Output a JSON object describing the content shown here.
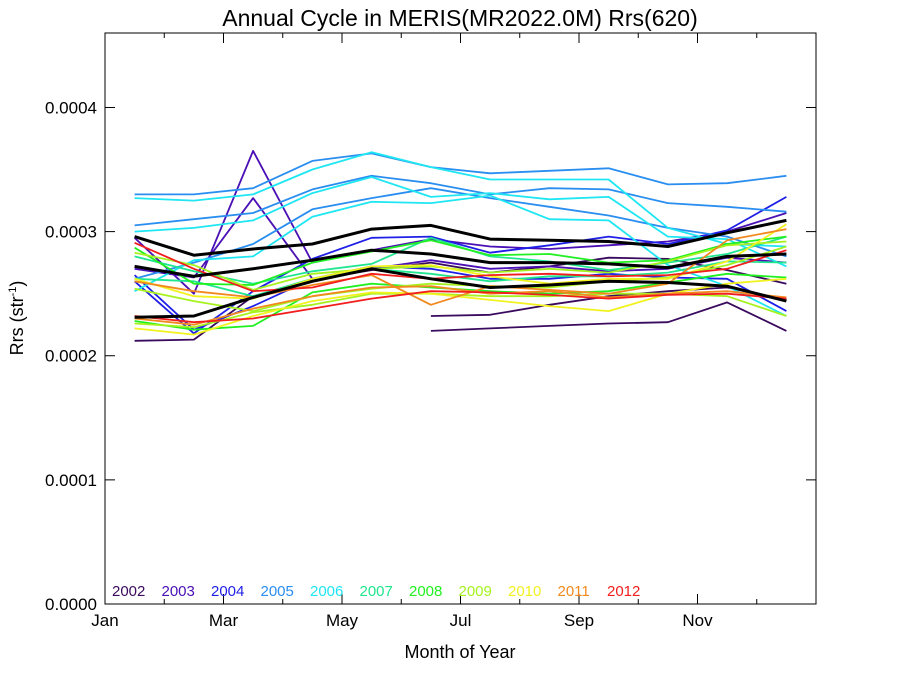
{
  "chart_data": {
    "type": "line",
    "title": "Annual Cycle in MERIS(MR2022.0M) Rrs(620)",
    "xlabel": "Month of Year",
    "ylabel_main": "Rrs (str",
    "ylabel_sup": "-1",
    "ylabel_close": ")",
    "xlim": [
      0,
      12
    ],
    "ylim": [
      0,
      0.00046
    ],
    "x_ticks": [
      {
        "value": 0,
        "label": "Jan"
      },
      {
        "value": 2,
        "label": "Mar"
      },
      {
        "value": 4,
        "label": "May"
      },
      {
        "value": 6,
        "label": "Jul"
      },
      {
        "value": 8,
        "label": "Sep"
      },
      {
        "value": 10,
        "label": "Nov"
      }
    ],
    "y_ticks": [
      {
        "value": 0,
        "label": "0.0000"
      },
      {
        "value": 0.0001,
        "label": "0.0001"
      },
      {
        "value": 0.0002,
        "label": "0.0002"
      },
      {
        "value": 0.0003,
        "label": "0.0003"
      },
      {
        "value": 0.0004,
        "label": "0.0004"
      }
    ],
    "months": [
      0.5,
      1.5,
      2.5,
      3.5,
      4.5,
      5.5,
      6.5,
      7.5,
      8.5,
      9.5,
      10.5,
      11.5
    ],
    "legend": [
      {
        "label": "2002",
        "color": "#3a0a5e"
      },
      {
        "label": "2003",
        "color": "#4a0fb5"
      },
      {
        "label": "2004",
        "color": "#1f1fe8"
      },
      {
        "label": "2005",
        "color": "#2a8ef0"
      },
      {
        "label": "2006",
        "color": "#1ee6f2"
      },
      {
        "label": "2007",
        "color": "#20e68f"
      },
      {
        "label": "2008",
        "color": "#21f021"
      },
      {
        "label": "2009",
        "color": "#a6f21e"
      },
      {
        "label": "2010",
        "color": "#f2f21e"
      },
      {
        "label": "2011",
        "color": "#f2891e"
      },
      {
        "label": "2012",
        "color": "#f21e1e"
      }
    ],
    "series": [
      {
        "year_index": 0,
        "values": [
          null,
          null,
          null,
          null,
          null,
          0.00022,
          0.000222,
          0.000224,
          0.000226,
          0.000227,
          0.000243,
          0.00022
        ]
      },
      {
        "year_index": 0,
        "values": [
          0.000212,
          0.000213,
          0.000248,
          0.000261,
          0.000269,
          0.000275,
          0.000267,
          0.000272,
          0.000279,
          0.000278,
          0.000269,
          0.000258
        ]
      },
      {
        "year_index": 0,
        "values": [
          null,
          null,
          null,
          null,
          null,
          0.000232,
          0.000233,
          0.000241,
          0.000248,
          0.000252,
          0.000255,
          0.000245
        ]
      },
      {
        "year_index": 1,
        "values": [
          0.000295,
          0.00025,
          0.000365,
          0.000275,
          0.000285,
          0.000294,
          0.000288,
          0.000286,
          0.000289,
          0.000292,
          0.0003,
          0.000315
        ]
      },
      {
        "year_index": 1,
        "values": [
          0.00027,
          0.000263,
          0.000327,
          0.000262,
          0.00027,
          0.000277,
          0.00027,
          0.000272,
          0.000268,
          0.00027,
          0.000279,
          0.000275
        ]
      },
      {
        "year_index": 2,
        "values": [
          0.00026,
          0.000218,
          0.000252,
          0.000278,
          0.000295,
          0.000296,
          0.000283,
          0.000289,
          0.000296,
          0.00029,
          0.000301,
          0.000328
        ]
      },
      {
        "year_index": 2,
        "values": [
          0.000265,
          0.000221,
          0.00024,
          0.000262,
          0.000272,
          0.00027,
          0.000262,
          0.000262,
          0.000266,
          0.000263,
          0.000262,
          0.000236
        ]
      },
      {
        "year_index": 3,
        "values": [
          0.00033,
          0.00033,
          0.000335,
          0.000357,
          0.000363,
          0.000352,
          0.000347,
          0.000349,
          0.000351,
          0.000338,
          0.000339,
          0.000345
        ]
      },
      {
        "year_index": 3,
        "values": [
          0.000305,
          0.00031,
          0.000315,
          0.000334,
          0.000345,
          0.000339,
          0.00033,
          0.000335,
          0.000334,
          0.000323,
          0.00032,
          0.000316
        ]
      },
      {
        "year_index": 3,
        "values": [
          0.000262,
          0.000275,
          0.00029,
          0.000318,
          0.000327,
          0.000335,
          0.000327,
          0.00032,
          0.000313,
          0.000303,
          0.000296,
          0.00028
        ]
      },
      {
        "year_index": 4,
        "values": [
          0.000327,
          0.000325,
          0.00033,
          0.00035,
          0.000364,
          0.000352,
          0.000342,
          0.000342,
          0.000342,
          0.000303,
          0.00029,
          0.000288
        ]
      },
      {
        "year_index": 4,
        "values": [
          0.0003,
          0.000303,
          0.000309,
          0.000331,
          0.000344,
          0.000328,
          0.000331,
          0.000326,
          0.000328,
          0.000296,
          0.000294,
          0.000272
        ]
      },
      {
        "year_index": 4,
        "values": [
          0.000252,
          0.000277,
          0.00028,
          0.000312,
          0.000324,
          0.000323,
          0.000329,
          0.00031,
          0.000309,
          0.000273,
          0.000256,
          0.000232
        ]
      },
      {
        "year_index": 5,
        "values": [
          0.00028,
          0.000268,
          0.000258,
          0.000268,
          0.000274,
          0.000295,
          0.00028,
          0.000276,
          0.000269,
          0.000275,
          0.000282,
          0.000296
        ]
      },
      {
        "year_index": 5,
        "values": [
          0.000262,
          0.00026,
          0.000248,
          0.000262,
          0.00027,
          0.000266,
          0.00026,
          0.000264,
          0.000264,
          0.000267,
          0.000276,
          0.000275
        ]
      },
      {
        "year_index": 6,
        "values": [
          0.000287,
          0.000258,
          0.000257,
          0.000275,
          0.000284,
          0.000293,
          0.000281,
          0.000282,
          0.000275,
          0.000277,
          0.00029,
          0.000296
        ]
      },
      {
        "year_index": 6,
        "values": [
          0.000228,
          0.000221,
          0.000224,
          0.000251,
          0.000258,
          0.000255,
          0.000252,
          0.00025,
          0.000252,
          0.000259,
          0.000266,
          0.000263
        ]
      },
      {
        "year_index": 7,
        "values": [
          0.000283,
          0.000273,
          0.000253,
          0.000266,
          0.00027,
          0.000272,
          0.000267,
          0.00027,
          0.000267,
          0.000276,
          0.000289,
          0.000292
        ]
      },
      {
        "year_index": 7,
        "values": [
          0.000254,
          0.000244,
          0.000236,
          0.000248,
          0.000254,
          0.000258,
          0.000256,
          0.000255,
          0.00026,
          0.000263,
          0.000273,
          0.000288
        ]
      },
      {
        "year_index": 7,
        "values": [
          0.000226,
          0.000223,
          0.000235,
          0.000241,
          0.00025,
          0.00025,
          0.000248,
          0.000248,
          0.00025,
          0.00025,
          0.000248,
          0.000232
        ]
      },
      {
        "year_index": 8,
        "values": [
          0.000262,
          0.000248,
          0.000246,
          0.000262,
          0.000272,
          0.000273,
          0.000264,
          0.000258,
          0.000262,
          0.000262,
          0.000276,
          0.000306
        ]
      },
      {
        "year_index": 8,
        "values": [
          0.000222,
          0.000217,
          0.000232,
          0.000244,
          0.000251,
          0.00025,
          0.000245,
          0.00024,
          0.000236,
          0.00025,
          0.000258,
          0.000262
        ]
      },
      {
        "year_index": 9,
        "values": [
          0.00026,
          0.000252,
          0.000247,
          0.000257,
          0.000265,
          0.000241,
          0.000256,
          0.000253,
          0.00025,
          0.000258,
          0.000293,
          0.000302
        ]
      },
      {
        "year_index": 9,
        "values": [
          0.00023,
          0.000225,
          0.000238,
          0.000248,
          0.000255,
          0.000256,
          0.00025,
          0.000252,
          0.000247,
          0.00025,
          0.000252,
          0.000247
        ]
      },
      {
        "year_index": 10,
        "values": [
          0.000291,
          0.00027,
          0.000252,
          0.000255,
          0.000266,
          0.000262,
          0.000265,
          0.000266,
          0.000264,
          0.000265,
          0.00027,
          0.000285
        ]
      },
      {
        "year_index": 10,
        "values": [
          0.000232,
          0.000227,
          0.00023,
          0.000238,
          0.000246,
          0.000252,
          0.000251,
          0.000249,
          0.000246,
          0.000249,
          0.00025,
          0.000246
        ]
      },
      {
        "year_index": -1,
        "values": [
          0.000296,
          0.000281,
          0.000286,
          0.00029,
          0.000302,
          0.000305,
          0.000294,
          0.000293,
          0.000292,
          0.000288,
          0.000299,
          0.000309
        ]
      },
      {
        "year_index": -1,
        "values": [
          0.000272,
          0.000264,
          0.00027,
          0.000277,
          0.000285,
          0.000282,
          0.000275,
          0.000275,
          0.000274,
          0.000271,
          0.00028,
          0.000282
        ]
      },
      {
        "year_index": -1,
        "values": [
          0.000231,
          0.000232,
          0.000247,
          0.00026,
          0.00027,
          0.000262,
          0.000255,
          0.000257,
          0.00026,
          0.000259,
          0.000256,
          0.000244
        ]
      }
    ]
  }
}
